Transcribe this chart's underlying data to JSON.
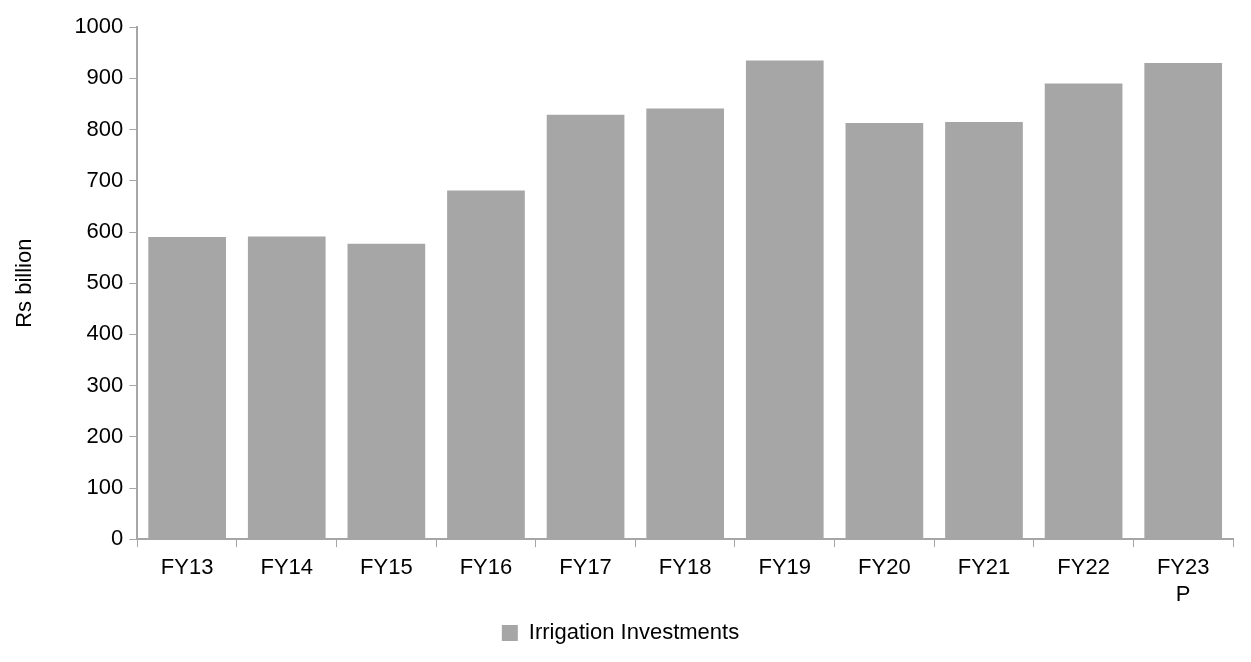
{
  "chart_data": {
    "type": "bar",
    "ylabel": "Rs billion",
    "categories": [
      "FY13",
      "FY14",
      "FY15",
      "FY16",
      "FY17",
      "FY18",
      "FY19",
      "FY20",
      "FY21",
      "FY22",
      "FY23 P"
    ],
    "series": [
      {
        "name": "Irrigation Investments",
        "color": "#a6a6a6",
        "values": [
          590,
          591,
          577,
          681,
          829,
          841,
          935,
          813,
          815,
          890,
          930
        ]
      }
    ],
    "ylim": [
      0,
      1000
    ],
    "yticks": [
      0,
      100,
      200,
      300,
      400,
      500,
      600,
      700,
      800,
      900,
      1000
    ],
    "grid": false,
    "legend": "bottom"
  }
}
